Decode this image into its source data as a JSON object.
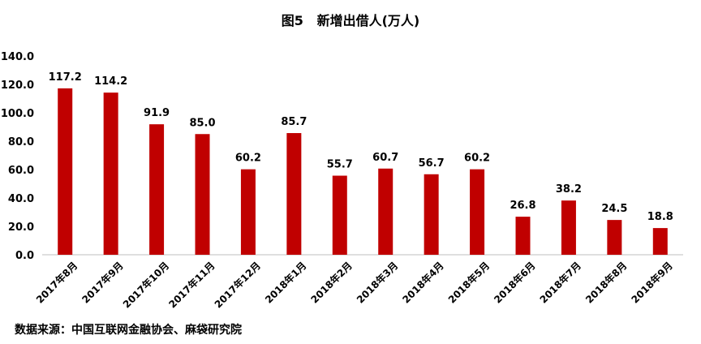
{
  "title": "图5   新增出借人(万人)",
  "source": "数据来源：中国互联网金融协会、麻袋研究院",
  "chart_data": {
    "type": "bar",
    "title": "图5   新增出借人(万人)",
    "categories": [
      "2017年8月",
      "2017年9月",
      "2017年10月",
      "2017年11月",
      "2017年12月",
      "2018年1月",
      "2018年2月",
      "2018年3月",
      "2018年4月",
      "2018年5月",
      "2018年6月",
      "2018年7月",
      "2018年8月",
      "2018年9月"
    ],
    "values": [
      117.2,
      114.2,
      91.9,
      85.0,
      60.2,
      85.7,
      55.7,
      60.7,
      56.7,
      60.2,
      26.8,
      38.2,
      24.5,
      18.8
    ],
    "value_labels": [
      "117.2",
      "114.2",
      "91.9",
      "85.0",
      "60.2",
      "85.7",
      "55.7",
      "60.7",
      "56.7",
      "60.2",
      "26.8",
      "38.2",
      "24.5",
      "18.8"
    ],
    "yticks": [
      "0.0",
      "20.0",
      "40.0",
      "60.0",
      "80.0",
      "100.0",
      "120.0",
      "140.0"
    ],
    "ylim": [
      0,
      140
    ],
    "grid": false,
    "bar_color": "#C00000"
  }
}
